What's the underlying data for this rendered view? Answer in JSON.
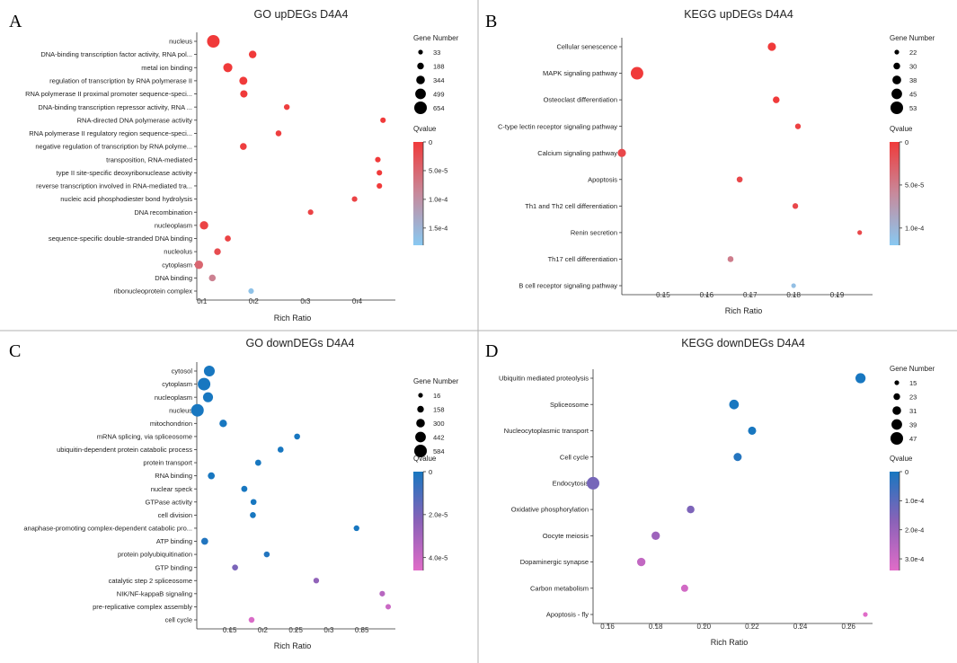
{
  "colors": {
    "up_high": "#f03a3a",
    "up_mid": "#c78a9c",
    "up_low": "#88c9f2",
    "down_high": "#1877c0",
    "down_mid": "#8a62b8",
    "down_low": "#e06cc8"
  },
  "chart_data": [
    {
      "letter": "A",
      "type": "scatter",
      "title": "GO upDEGs D4A4",
      "xlabel": "Rich Ratio",
      "ylabel": "",
      "xlim": [
        0.09,
        0.46
      ],
      "xticks": [
        0.1,
        0.2,
        0.3,
        0.4
      ],
      "xtick_labels": [
        "0.1",
        "0.2",
        "0.3",
        "0.4"
      ],
      "palette": "up",
      "size_legend": {
        "title": "Gene Number",
        "values": [
          33,
          188,
          344,
          499,
          654
        ]
      },
      "color_legend": {
        "title": "Qvalue",
        "max": 0.00018,
        "ticks": [
          0,
          5e-05,
          0.0001,
          0.00015
        ],
        "labels": [
          "0",
          "5.0e-5",
          "1.0e-4",
          "1.5e-4"
        ]
      },
      "terms": [
        {
          "label": "nucleus",
          "x": 0.122,
          "count": 654,
          "q": 0.0
        },
        {
          "label": "DNA-binding transcription factor activity, RNA pol...",
          "x": 0.198,
          "count": 260,
          "q": 0.0
        },
        {
          "label": "metal ion binding",
          "x": 0.15,
          "count": 380,
          "q": 0.0
        },
        {
          "label": "regulation of transcription by RNA polymerase II",
          "x": 0.18,
          "count": 300,
          "q": 0.0
        },
        {
          "label": "RNA polymerase II proximal promoter sequence-speci...",
          "x": 0.181,
          "count": 240,
          "q": 0.0
        },
        {
          "label": "DNA-binding transcription repressor activity, RNA ...",
          "x": 0.264,
          "count": 120,
          "q": 5e-06
        },
        {
          "label": "RNA-directed DNA polymerase activity",
          "x": 0.45,
          "count": 100,
          "q": 0.0
        },
        {
          "label": "RNA polymerase II regulatory region sequence-speci...",
          "x": 0.248,
          "count": 130,
          "q": 5e-06
        },
        {
          "label": "negative regulation of transcription by RNA polyme...",
          "x": 0.18,
          "count": 200,
          "q": 5e-06
        },
        {
          "label": "transposition, RNA-mediated",
          "x": 0.44,
          "count": 100,
          "q": 0.0
        },
        {
          "label": "type II site-specific deoxyribonuclease activity",
          "x": 0.443,
          "count": 100,
          "q": 0.0
        },
        {
          "label": "reverse transcription involved in RNA-mediated tra...",
          "x": 0.443,
          "count": 100,
          "q": 0.0
        },
        {
          "label": "nucleic acid phosphodiester bond hydrolysis",
          "x": 0.395,
          "count": 100,
          "q": 1e-05
        },
        {
          "label": "DNA recombination",
          "x": 0.31,
          "count": 100,
          "q": 1e-05
        },
        {
          "label": "nucleoplasm",
          "x": 0.104,
          "count": 330,
          "q": 1e-05
        },
        {
          "label": "sequence-specific double-stranded DNA binding",
          "x": 0.15,
          "count": 140,
          "q": 1e-05
        },
        {
          "label": "nucleolus",
          "x": 0.13,
          "count": 190,
          "q": 2e-05
        },
        {
          "label": "cytoplasm",
          "x": 0.094,
          "count": 330,
          "q": 5e-05
        },
        {
          "label": "DNA binding",
          "x": 0.12,
          "count": 200,
          "q": 8e-05
        },
        {
          "label": "ribonucleoprotein complex",
          "x": 0.195,
          "count": 100,
          "q": 0.00017
        }
      ]
    },
    {
      "letter": "B",
      "type": "scatter",
      "title": "KEGG upDEGs D4A4",
      "xlabel": "Rich Ratio",
      "ylabel": "",
      "xlim": [
        0.1405,
        0.1965
      ],
      "xticks": [
        0.15,
        0.16,
        0.17,
        0.18,
        0.19
      ],
      "xtick_labels": [
        "0.15",
        "0.16",
        "0.17",
        "0.18",
        "0.19"
      ],
      "palette": "up",
      "size_legend": {
        "title": "Gene Number",
        "values": [
          22,
          30,
          38,
          45,
          53
        ]
      },
      "color_legend": {
        "title": "Qvalue",
        "max": 0.00012,
        "ticks": [
          0,
          5e-05,
          0.0001
        ],
        "labels": [
          "0",
          "5.0e-5",
          "1.0e-4"
        ]
      },
      "terms": [
        {
          "label": "Cellular senescence",
          "x": 0.175,
          "count": 36,
          "q": 0.0
        },
        {
          "label": "MAPK signaling pathway",
          "x": 0.144,
          "count": 53,
          "q": 0.0
        },
        {
          "label": "Osteoclast differentiation",
          "x": 0.176,
          "count": 30,
          "q": 0.0
        },
        {
          "label": "C-type lectin receptor signaling pathway",
          "x": 0.181,
          "count": 26,
          "q": 5e-06
        },
        {
          "label": "Calcium signaling pathway",
          "x": 0.1405,
          "count": 36,
          "q": 1e-05
        },
        {
          "label": "Apoptosis",
          "x": 0.1676,
          "count": 27,
          "q": 1e-05
        },
        {
          "label": "Th1 and Th2 cell differentiation",
          "x": 0.1804,
          "count": 26,
          "q": 1e-05
        },
        {
          "label": "Renin secretion",
          "x": 0.1952,
          "count": 22,
          "q": 1e-05
        },
        {
          "label": "Th17 cell differentiation",
          "x": 0.1655,
          "count": 27,
          "q": 5e-05
        },
        {
          "label": "B cell receptor signaling pathway",
          "x": 0.18,
          "count": 22,
          "q": 0.00011
        }
      ]
    },
    {
      "letter": "C",
      "type": "scatter",
      "title": "GO downDEGs D4A4",
      "xlabel": "Rich Ratio",
      "ylabel": "",
      "xlim": [
        0.1,
        0.39
      ],
      "xticks": [
        0.15,
        0.2,
        0.25,
        0.3,
        0.35
      ],
      "xtick_labels": [
        "0.15",
        "0.2",
        "0.25",
        "0.3",
        "0.35"
      ],
      "palette": "down",
      "size_legend": {
        "title": "Gene Number",
        "values": [
          16,
          158,
          300,
          442,
          584
        ]
      },
      "color_legend": {
        "title": "Qvalue",
        "max": 4.6e-05,
        "ticks": [
          0,
          2e-05,
          4e-05
        ],
        "labels": [
          "0",
          "2.0e-5",
          "4.0e-5"
        ]
      },
      "terms": [
        {
          "label": "cytosol",
          "x": 0.119,
          "count": 460,
          "q": 0.0
        },
        {
          "label": "cytoplasm",
          "x": 0.111,
          "count": 584,
          "q": 0.0
        },
        {
          "label": "nucleoplasm",
          "x": 0.117,
          "count": 400,
          "q": 0.0
        },
        {
          "label": "nucleus",
          "x": 0.101,
          "count": 584,
          "q": 0.0
        },
        {
          "label": "mitochondrion",
          "x": 0.14,
          "count": 220,
          "q": 0.0
        },
        {
          "label": "mRNA splicing, via spliceosome",
          "x": 0.252,
          "count": 110,
          "q": 0.0
        },
        {
          "label": "ubiquitin-dependent protein catabolic process",
          "x": 0.227,
          "count": 110,
          "q": 0.0
        },
        {
          "label": "protein transport",
          "x": 0.193,
          "count": 120,
          "q": 0.0
        },
        {
          "label": "RNA binding",
          "x": 0.122,
          "count": 180,
          "q": 0.0
        },
        {
          "label": "nuclear speck",
          "x": 0.172,
          "count": 120,
          "q": 0.0
        },
        {
          "label": "GTPase activity",
          "x": 0.186,
          "count": 110,
          "q": 0.0
        },
        {
          "label": "cell division",
          "x": 0.185,
          "count": 110,
          "q": 0.0
        },
        {
          "label": "anaphase-promoting complex-dependent catabolic pro...",
          "x": 0.342,
          "count": 90,
          "q": 0.0
        },
        {
          "label": "ATP binding",
          "x": 0.112,
          "count": 180,
          "q": 2e-06
        },
        {
          "label": "protein polyubiquitination",
          "x": 0.206,
          "count": 100,
          "q": 2e-06
        },
        {
          "label": "GTP binding",
          "x": 0.158,
          "count": 110,
          "q": 2e-05
        },
        {
          "label": "catalytic step 2 spliceosome",
          "x": 0.281,
          "count": 90,
          "q": 2.5e-05
        },
        {
          "label": "NIK/NF-kappaB signaling",
          "x": 0.381,
          "count": 80,
          "q": 3.5e-05
        },
        {
          "label": "pre-replicative complex assembly",
          "x": 0.39,
          "count": 70,
          "q": 4e-05
        },
        {
          "label": "cell cycle",
          "x": 0.183,
          "count": 100,
          "q": 4.4e-05
        }
      ]
    },
    {
      "letter": "D",
      "type": "scatter",
      "title": "KEGG downDEGs D4A4",
      "xlabel": "Rich Ratio",
      "ylabel": "",
      "xlim": [
        0.154,
        0.267
      ],
      "xticks": [
        0.16,
        0.18,
        0.2,
        0.22,
        0.24,
        0.26
      ],
      "xtick_labels": [
        "0.16",
        "0.18",
        "0.20",
        "0.22",
        "0.24",
        "0.26"
      ],
      "palette": "down",
      "size_legend": {
        "title": "Gene Number",
        "values": [
          15,
          23,
          31,
          39,
          47
        ]
      },
      "color_legend": {
        "title": "Qvalue",
        "max": 0.00034,
        "ticks": [
          0,
          0.0001,
          0.0002,
          0.0003
        ],
        "labels": [
          "0",
          "1.0e-4",
          "2.0e-4",
          "3.0e-4"
        ]
      },
      "terms": [
        {
          "label": "Ubiquitin mediated proteolysis",
          "x": 0.265,
          "count": 37,
          "q": 0.0
        },
        {
          "label": "Spliceosome",
          "x": 0.2125,
          "count": 35,
          "q": 0.0
        },
        {
          "label": "Nucleocytoplasmic transport",
          "x": 0.22,
          "count": 29,
          "q": 0.0
        },
        {
          "label": "Cell cycle",
          "x": 0.214,
          "count": 29,
          "q": 2e-05
        },
        {
          "label": "Endocytosis",
          "x": 0.154,
          "count": 47,
          "q": 0.00014
        },
        {
          "label": "Oxidative phosphorylation",
          "x": 0.1945,
          "count": 27,
          "q": 0.00015
        },
        {
          "label": "Oocyte meiosis",
          "x": 0.18,
          "count": 30,
          "q": 0.00021
        },
        {
          "label": "Dopaminergic synapse",
          "x": 0.174,
          "count": 30,
          "q": 0.00028
        },
        {
          "label": "Carbon metabolism",
          "x": 0.192,
          "count": 25,
          "q": 0.00031
        },
        {
          "label": "Apoptosis - fly",
          "x": 0.267,
          "count": 15,
          "q": 0.00034
        }
      ]
    }
  ]
}
